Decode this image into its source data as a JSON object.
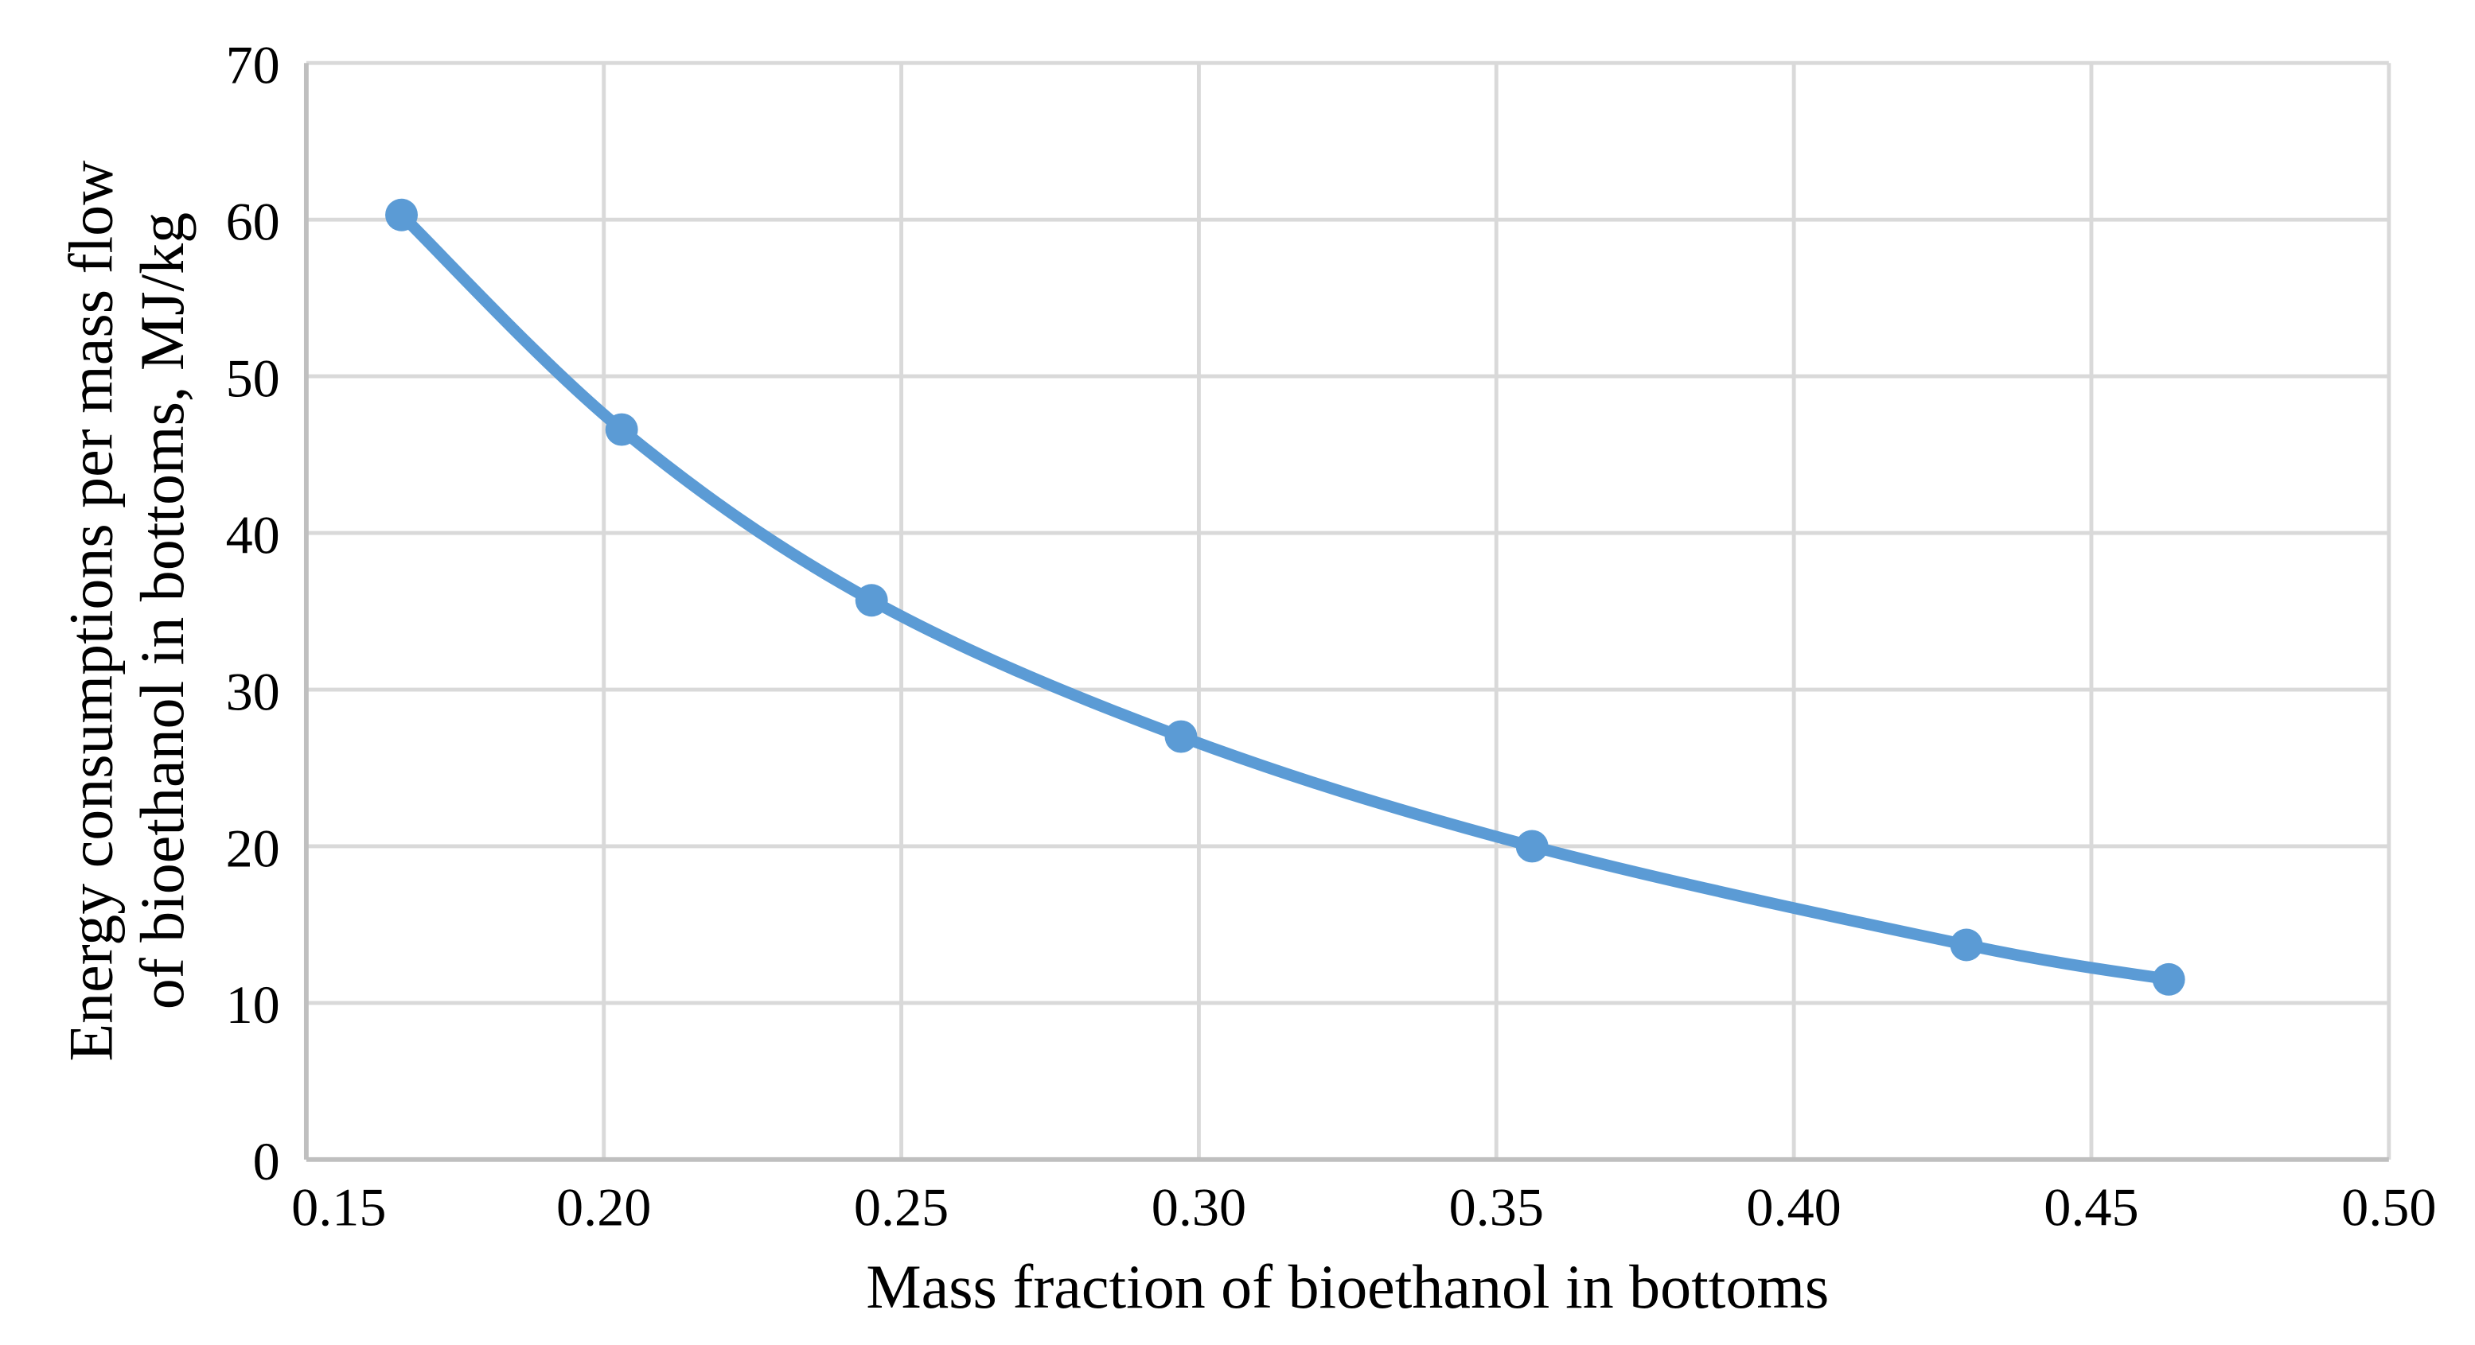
{
  "chart_data": {
    "type": "line",
    "title": "",
    "xlabel": "Mass fraction of bioethanol in bottoms",
    "ylabel": "Energy consumptions per mass flow of bioethanol in bottoms, MJ/kg",
    "ylabel_lines": [
      "Energy consumptions per mass flow",
      "of bioethanol in bottoms, MJ/kg"
    ],
    "x": [
      0.166,
      0.203,
      0.245,
      0.297,
      0.356,
      0.429,
      0.463
    ],
    "y": [
      60.3,
      46.6,
      35.7,
      27.0,
      20.0,
      13.7,
      11.5
    ],
    "xlim": [
      0.15,
      0.5
    ],
    "ylim": [
      0,
      70
    ],
    "x_tick_labels": [
      "0.15",
      "0.20",
      "0.25",
      "0.30",
      "0.35",
      "0.40",
      "0.45",
      "0.50"
    ],
    "y_tick_labels": [
      "0",
      "10",
      "20",
      "30",
      "40",
      "50",
      "60",
      "70"
    ],
    "grid": true,
    "legend": false,
    "smooth": true,
    "marker": "circle",
    "accent_color": "#5B9BD5",
    "gridline_color": "#D9D9D9",
    "axis_color": "#BFBFBF",
    "text_color": "#000000"
  }
}
